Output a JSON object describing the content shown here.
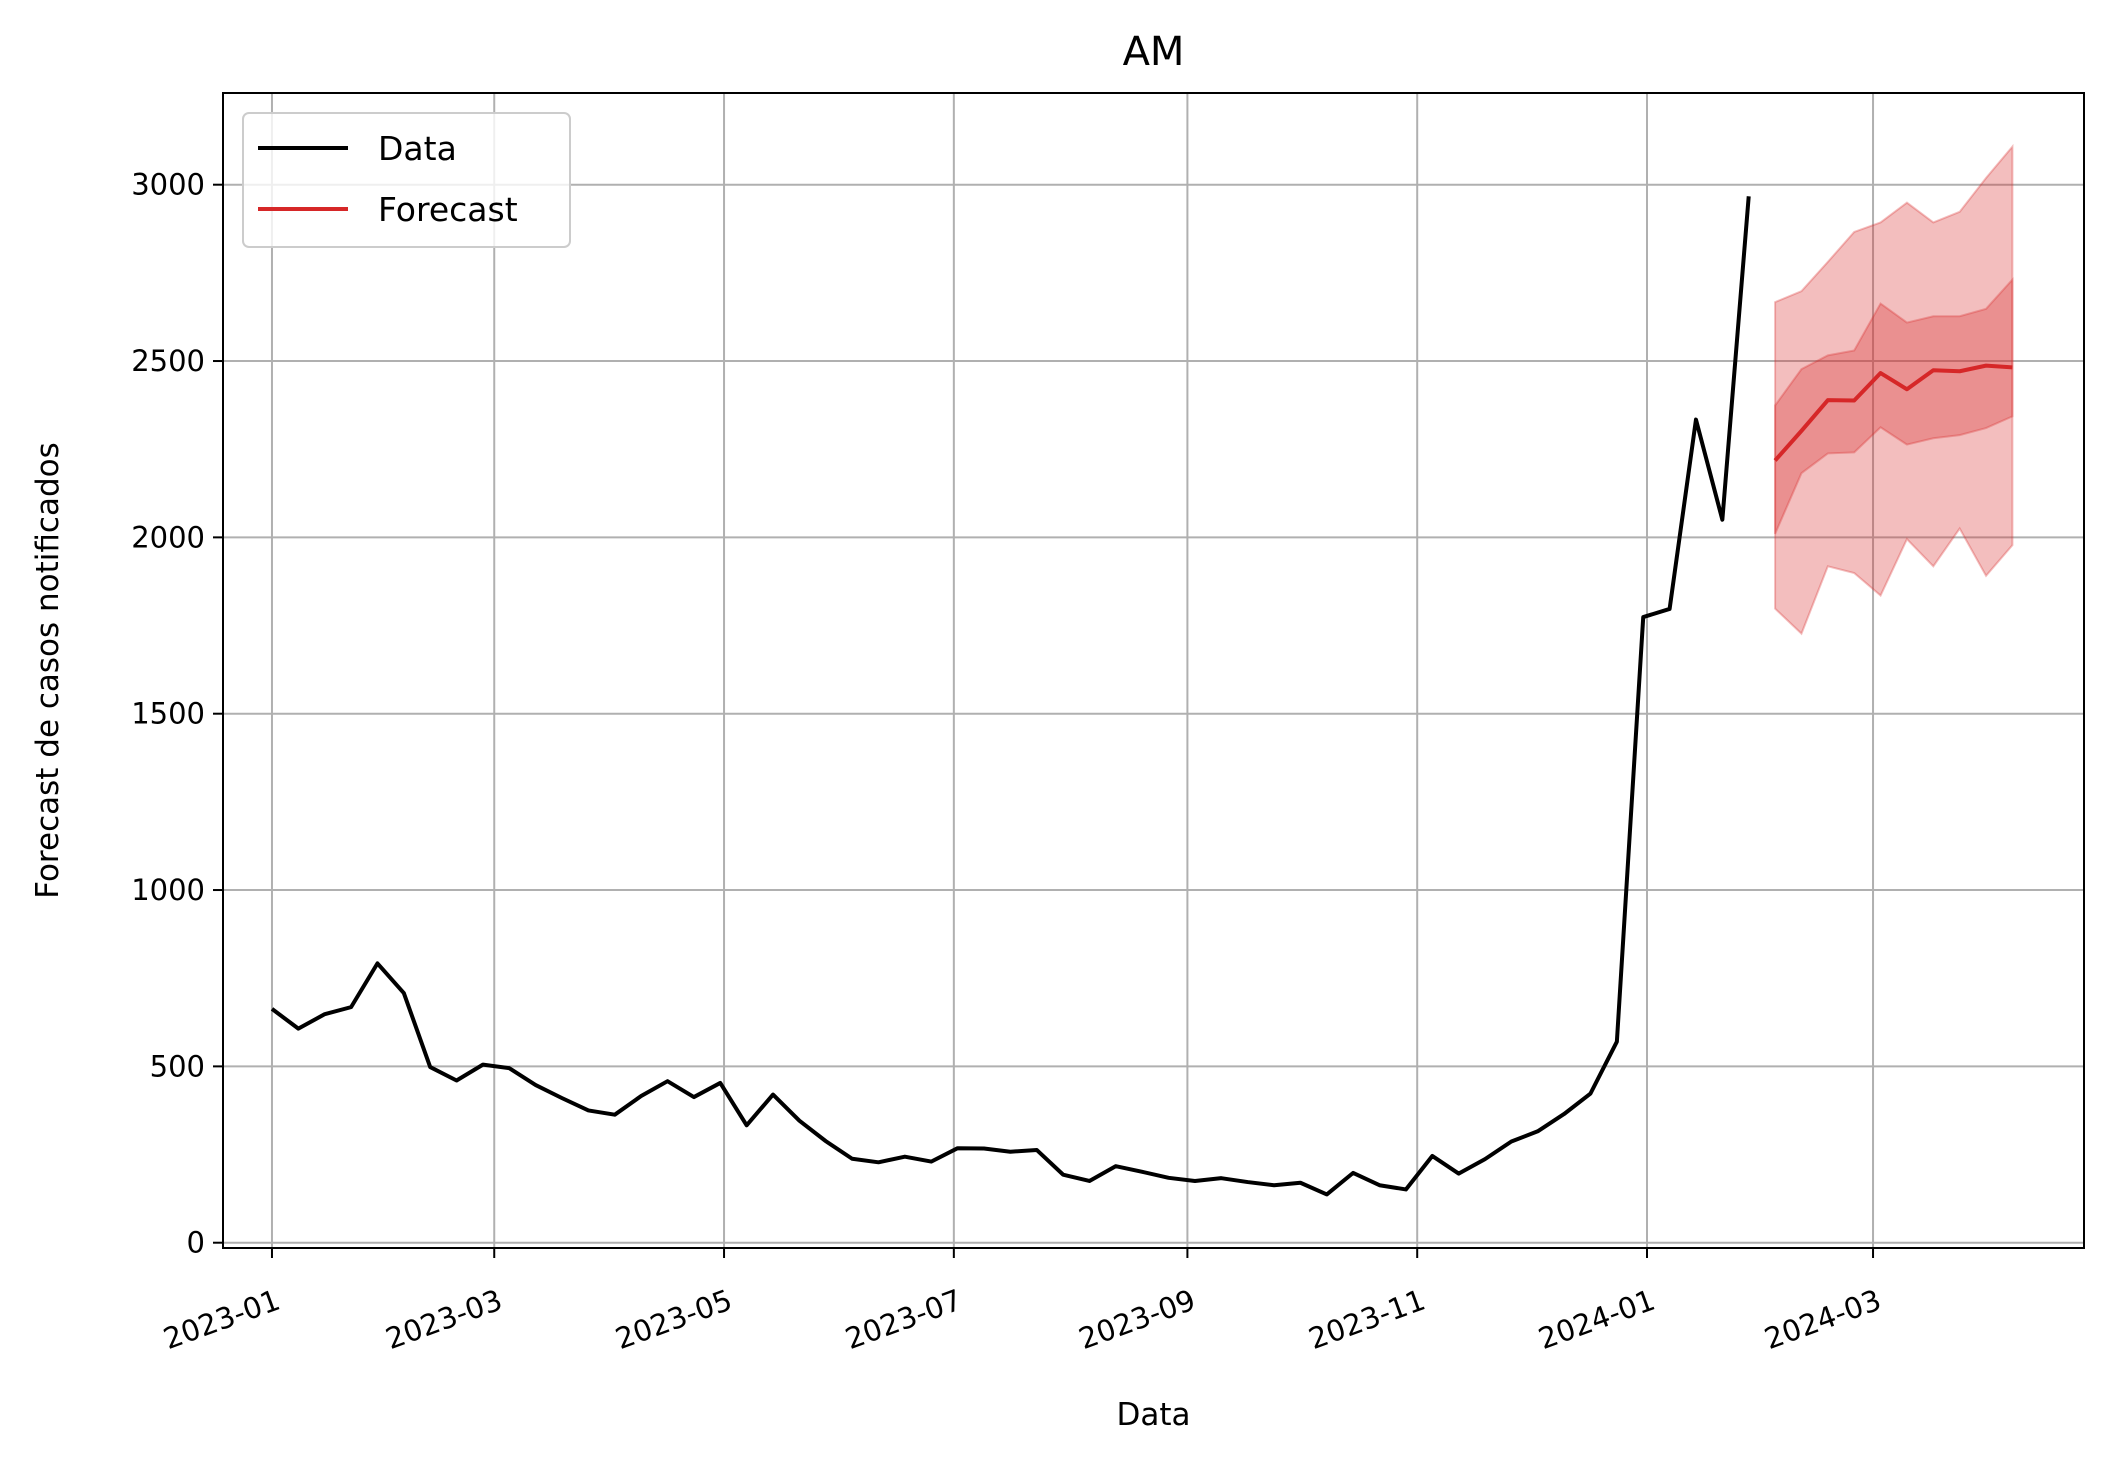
{
  "chart_data": {
    "type": "line",
    "title": "AM",
    "xlabel": "Data",
    "ylabel": "Forecast de casos notificados",
    "x_ticks": [
      "2023-01",
      "2023-03",
      "2023-05",
      "2023-07",
      "2023-09",
      "2023-11",
      "2024-01",
      "2024-03"
    ],
    "y_ticks": [
      0,
      500,
      1000,
      1500,
      2000,
      2500,
      3000
    ],
    "xlim": [
      "2022-12-19",
      "2024-04-26"
    ],
    "ylim": [
      -15,
      3260
    ],
    "grid": true,
    "legend_position": "top-left",
    "series": [
      {
        "name": "Data",
        "color": "#000000",
        "x": [
          "2023-01-01",
          "2023-01-08",
          "2023-01-15",
          "2023-01-22",
          "2023-01-29",
          "2023-02-05",
          "2023-02-12",
          "2023-02-19",
          "2023-02-26",
          "2023-03-05",
          "2023-03-12",
          "2023-03-19",
          "2023-03-26",
          "2023-04-02",
          "2023-04-09",
          "2023-04-16",
          "2023-04-23",
          "2023-04-30",
          "2023-05-07",
          "2023-05-14",
          "2023-05-21",
          "2023-05-28",
          "2023-06-04",
          "2023-06-11",
          "2023-06-18",
          "2023-06-25",
          "2023-07-02",
          "2023-07-09",
          "2023-07-16",
          "2023-07-23",
          "2023-07-30",
          "2023-08-06",
          "2023-08-13",
          "2023-08-20",
          "2023-08-27",
          "2023-09-03",
          "2023-09-10",
          "2023-09-17",
          "2023-09-24",
          "2023-10-01",
          "2023-10-08",
          "2023-10-15",
          "2023-10-22",
          "2023-10-29",
          "2023-11-05",
          "2023-11-12",
          "2023-11-19",
          "2023-11-26",
          "2023-12-03",
          "2023-12-10",
          "2023-12-17",
          "2023-12-24",
          "2023-12-31",
          "2024-01-07",
          "2024-01-14",
          "2024-01-21",
          "2024-01-28"
        ],
        "values": [
          663,
          607,
          648,
          668,
          792,
          708,
          498,
          460,
          505,
          495,
          447,
          410,
          375,
          363,
          416,
          458,
          413,
          453,
          333,
          420,
          346,
          288,
          238,
          228,
          244,
          230,
          268,
          267,
          258,
          263,
          193,
          175,
          217,
          201,
          184,
          175,
          183,
          172,
          163,
          170,
          137,
          198,
          163,
          151,
          246,
          196,
          237,
          287,
          316,
          365,
          423,
          570,
          1774,
          1797,
          2334,
          2050,
          2967
        ]
      },
      {
        "name": "Forecast",
        "color": "#d62728",
        "x": [
          "2024-02-04",
          "2024-02-11",
          "2024-02-18",
          "2024-02-25",
          "2024-03-03",
          "2024-03-10",
          "2024-03-17",
          "2024-03-24",
          "2024-03-31",
          "2024-04-07"
        ],
        "values": [
          2218,
          2302,
          2389,
          2388,
          2466,
          2420,
          2474,
          2471,
          2487,
          2482
        ],
        "ci_inner_low": [
          2010,
          2182,
          2238,
          2241,
          2312,
          2263,
          2281,
          2290,
          2310,
          2343
        ],
        "ci_inner_high": [
          2374,
          2477,
          2516,
          2530,
          2663,
          2609,
          2627,
          2627,
          2648,
          2731
        ],
        "ci_outer_low": [
          1798,
          1727,
          1918,
          1899,
          1835,
          1995,
          1918,
          2025,
          1891,
          1978
        ],
        "ci_outer_high": [
          2667,
          2698,
          2781,
          2866,
          2893,
          2949,
          2893,
          2923,
          3019,
          3108
        ]
      }
    ]
  }
}
